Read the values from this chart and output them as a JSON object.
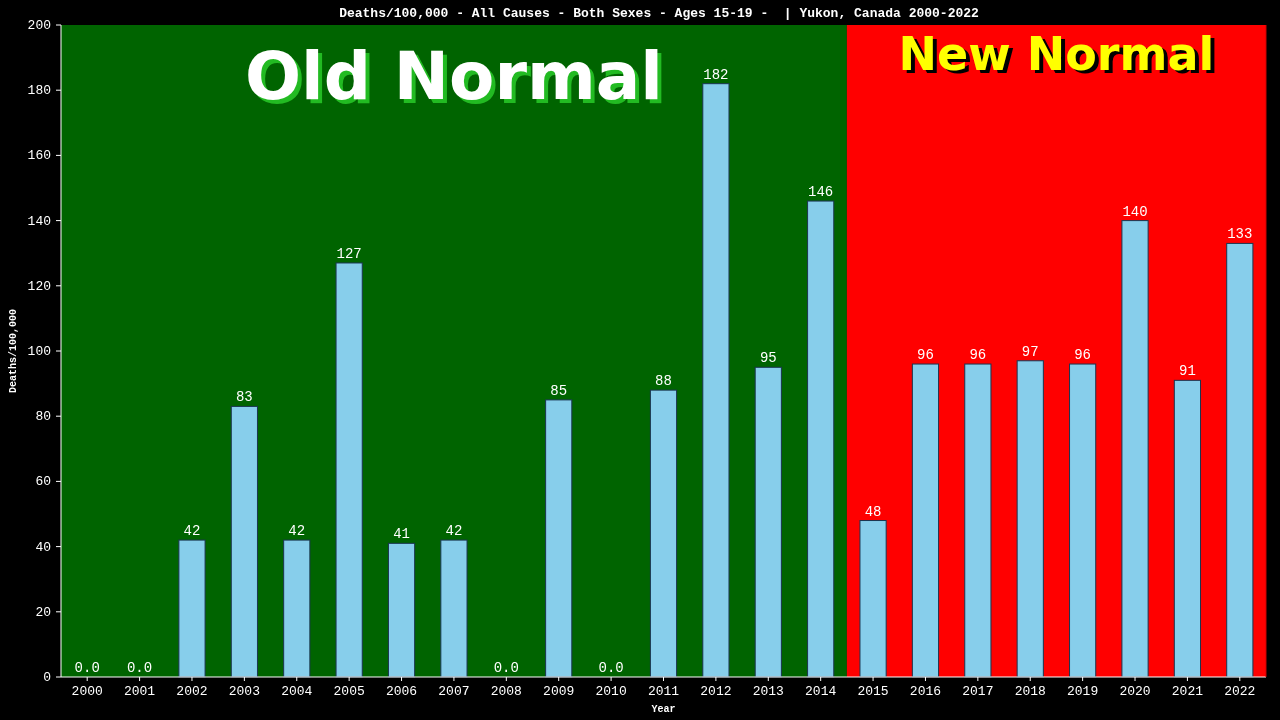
{
  "chart_data": {
    "type": "bar",
    "title": "Deaths/100,000 - All Causes - Both Sexes - Ages 15-19 -  | Yukon, Canada 2000-2022",
    "xlabel": "Year",
    "ylabel": "Deaths/100,000",
    "categories": [
      "2000",
      "2001",
      "2002",
      "2003",
      "2004",
      "2005",
      "2006",
      "2007",
      "2008",
      "2009",
      "2010",
      "2011",
      "2012",
      "2013",
      "2014",
      "2015",
      "2016",
      "2017",
      "2018",
      "2019",
      "2020",
      "2021",
      "2022"
    ],
    "values": [
      0,
      0,
      42,
      83,
      42,
      127,
      41,
      42,
      0,
      85,
      0,
      88,
      182,
      95,
      146,
      48,
      96,
      96,
      97,
      96,
      140,
      91,
      133
    ],
    "value_labels": [
      "0.0",
      "0.0",
      "42",
      "83",
      "42",
      "127",
      "41",
      "42",
      "0.0",
      "85",
      "0.0",
      "88",
      "182",
      "95",
      "146",
      "48",
      "96",
      "96",
      "97",
      "96",
      "140",
      "91",
      "133"
    ],
    "color": "#87ceeb",
    "ylim": [
      0,
      200
    ],
    "yticks": [
      0,
      20,
      40,
      60,
      80,
      100,
      120,
      140,
      160,
      180,
      200
    ],
    "grid": false,
    "bands": [
      {
        "axis": "x",
        "from": "2000",
        "to": "2014",
        "label": "Old Normal",
        "color": "#006400"
      },
      {
        "axis": "x",
        "from": "2015",
        "to": "2022",
        "label": "New Normal",
        "color": "#ff0000"
      }
    ]
  }
}
